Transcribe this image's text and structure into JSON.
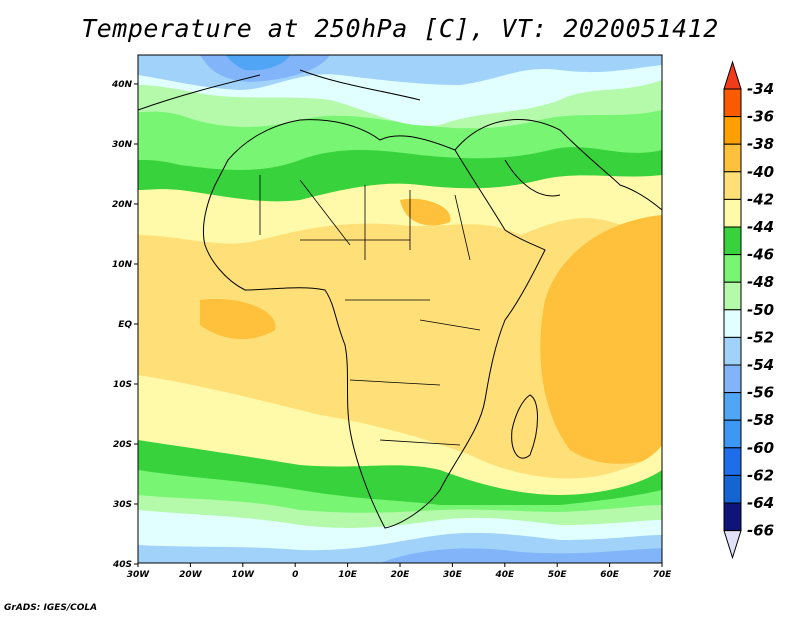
{
  "title": "Temperature at 250hPa [C], VT: 2020051412",
  "footer": "GrADS: IGES/COLA",
  "map": {
    "x_ticks": [
      "30W",
      "20W",
      "10W",
      "0",
      "10E",
      "20E",
      "30E",
      "40E",
      "50E",
      "60E",
      "70E"
    ],
    "y_ticks": [
      "40N",
      "30N",
      "20N",
      "10N",
      "EQ",
      "10S",
      "20S",
      "30S",
      "40S"
    ]
  },
  "colorbar": {
    "labels": [
      "-34",
      "-36",
      "-38",
      "-40",
      "-42",
      "-44",
      "-46",
      "-48",
      "-50",
      "-52",
      "-54",
      "-56",
      "-58",
      "-60",
      "-62",
      "-64",
      "-66"
    ],
    "over_color": "#f03c19",
    "colors": [
      "#fa5a00",
      "#ffa000",
      "#ffc03c",
      "#ffe078",
      "#fffaaa",
      "#37d23c",
      "#78f573",
      "#b4faaa",
      "#e1ffff",
      "#a0d2fa",
      "#82b4fa",
      "#50a5f5",
      "#3c97f5",
      "#1e6eeb",
      "#1464d2",
      "#0f1478"
    ],
    "under_color": "#e1e1fa"
  }
}
